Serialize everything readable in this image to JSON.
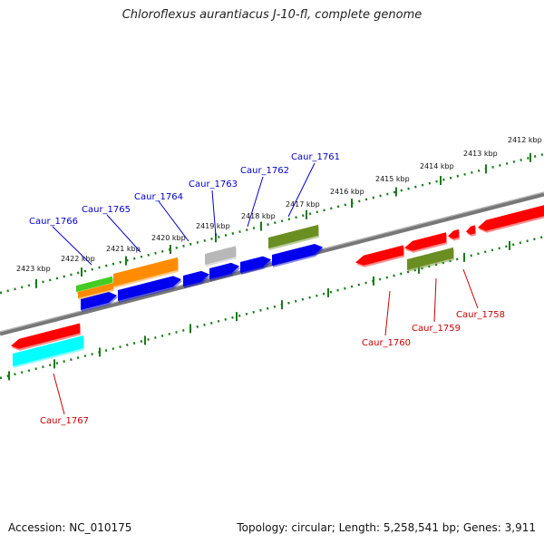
{
  "title": "Chloroflexus aurantiacus J-10-fl, complete genome",
  "footer": {
    "accession": "Accession: NC_010175",
    "topology": "Topology: circular; Length: 5,258,541 bp; Genes: 3,911"
  },
  "scale_labels": [
    "2412 kbp",
    "2413 kbp",
    "2414 kbp",
    "2415 kbp",
    "2416 kbp",
    "2417 kbp",
    "2418 kbp",
    "2419 kbp",
    "2420 kbp",
    "2421 kbp",
    "2422 kbp",
    "2423 kbp"
  ],
  "upper_labels": [
    "Caur_1766",
    "Caur_1765",
    "Caur_1764",
    "Caur_1763",
    "Caur_1762",
    "Caur_1761"
  ],
  "lower_labels": [
    "Caur_1767",
    "Caur_1760",
    "Caur_1759",
    "Caur_1758"
  ],
  "colors": {
    "upper_label": "#0000cc",
    "lower_label": "#cc0000",
    "backbone": "#888888",
    "tick": "#1a7a1a",
    "cds_blue": "#0000ee",
    "cds_red": "#ff0000",
    "cds_olive": "#6b8e23",
    "cds_orange": "#ff8c00",
    "cds_green": "#44cc22",
    "cds_grey": "#b8b8b8",
    "cds_cyan": "#00ffff"
  }
}
